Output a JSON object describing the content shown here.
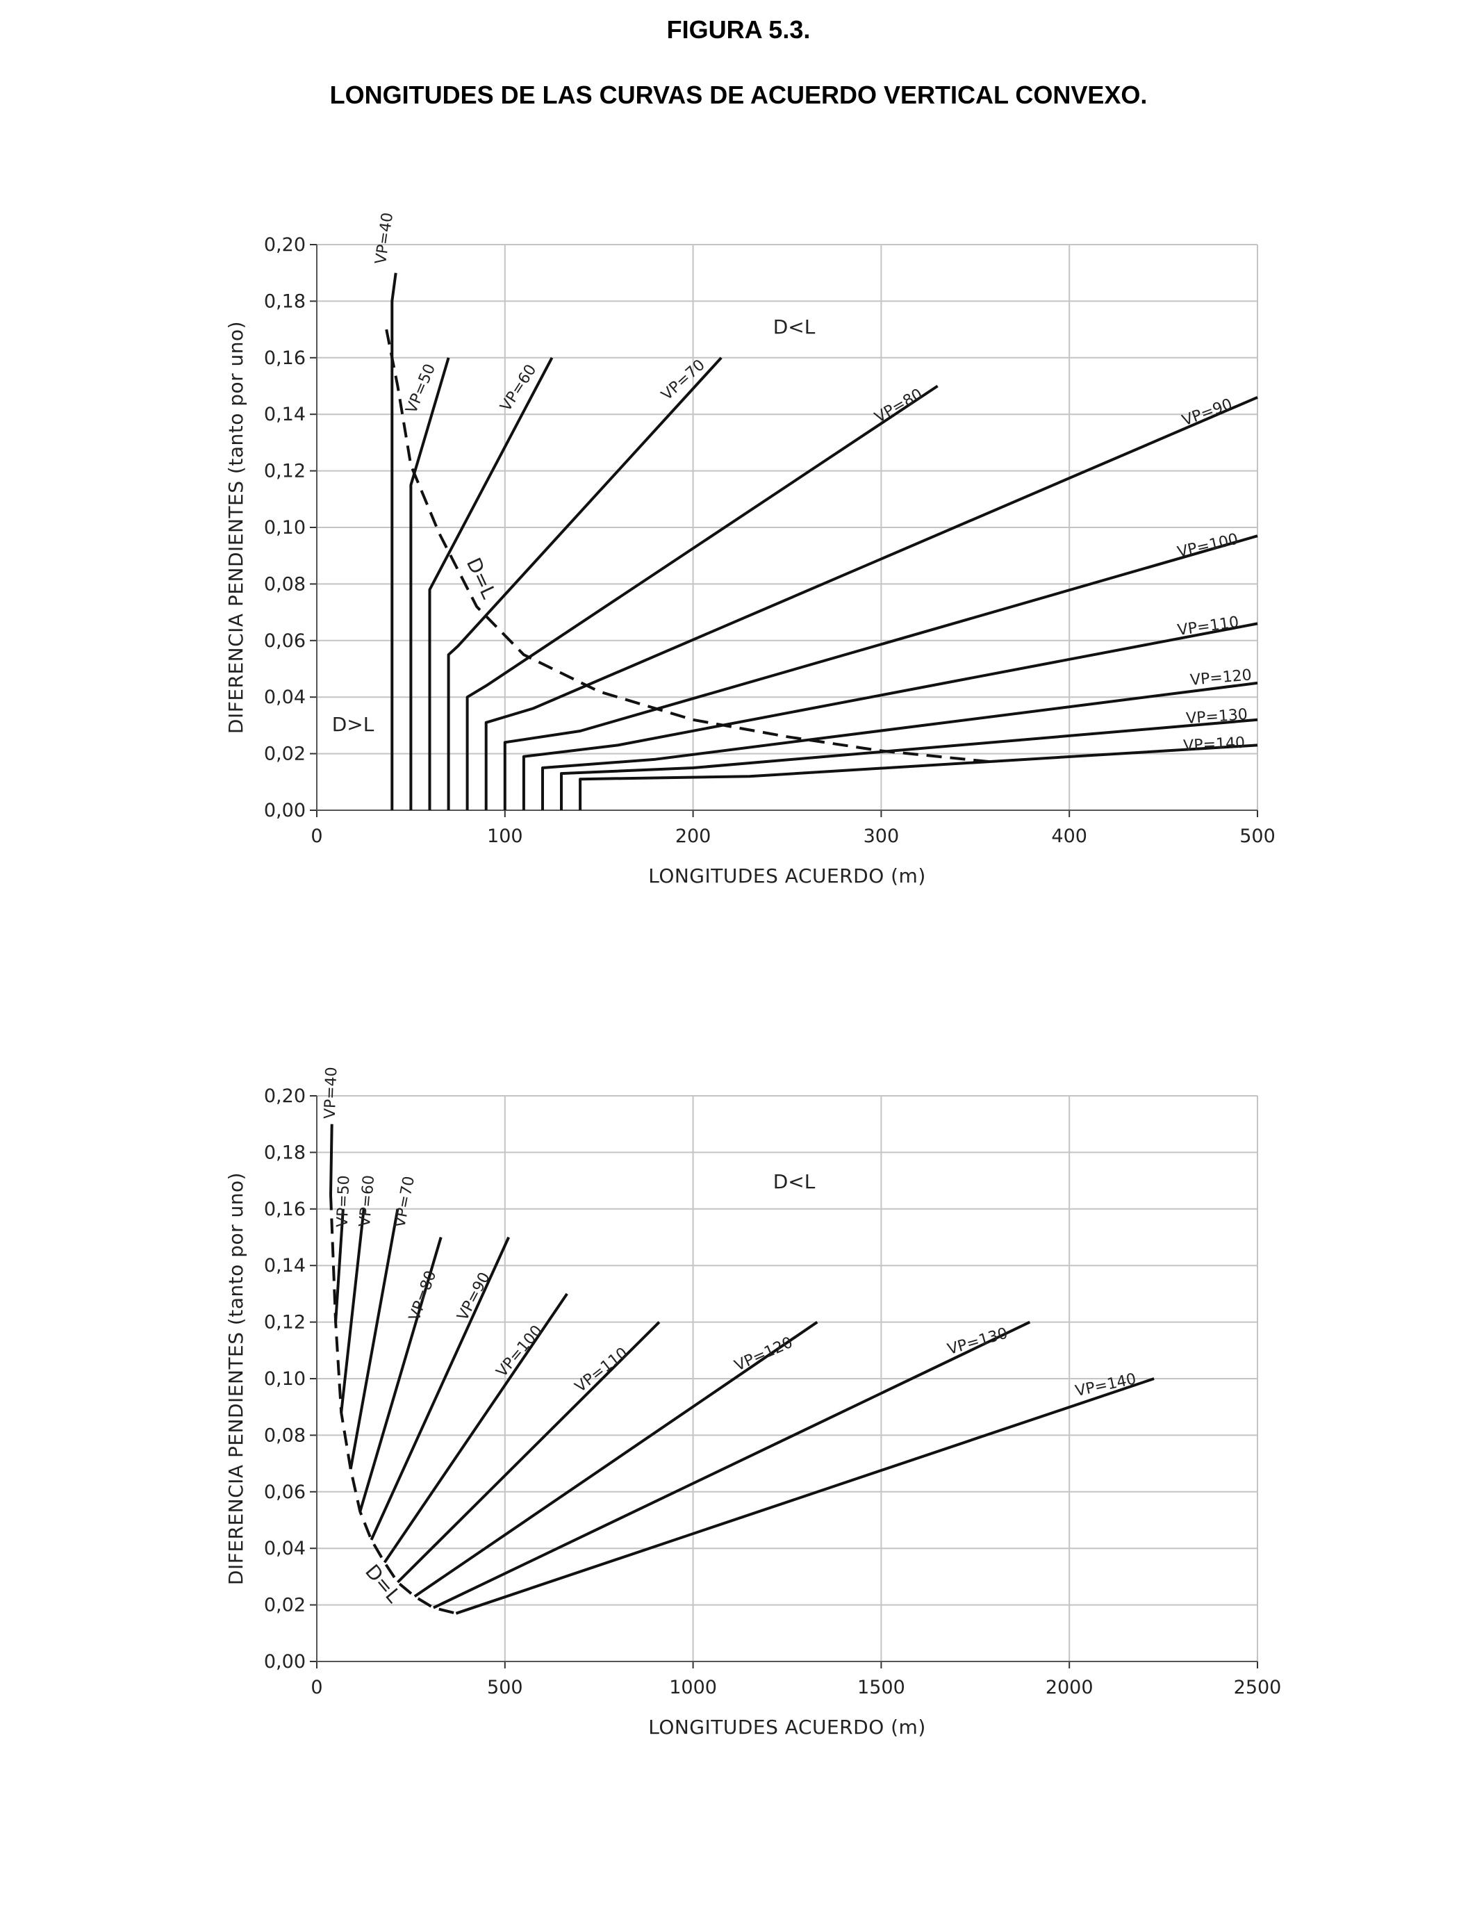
{
  "header": {
    "figure": "FIGURA 5.3.",
    "title": "LONGITUDES DE LAS CURVAS DE ACUERDO VERTICAL CONVEXO."
  },
  "chart_data": [
    {
      "type": "line",
      "xlabel": "LONGITUDES ACUERDO (m)",
      "ylabel": "DIFERENCIA PENDIENTES (tanto por uno)",
      "xlim": [
        0,
        500
      ],
      "ylim": [
        0,
        0.2
      ],
      "x_ticks": [
        "0",
        "100",
        "200",
        "300",
        "400",
        "500"
      ],
      "y_ticks": [
        "0,00",
        "0,02",
        "0,04",
        "0,06",
        "0,08",
        "0,10",
        "0,12",
        "0,14",
        "0,16",
        "0,18",
        "0,20"
      ],
      "grid": true,
      "annotations": [
        "D<L",
        "D>L",
        "D=L"
      ],
      "series": [
        {
          "name": "VP=40",
          "label": "VP=40",
          "points": [
            [
              40,
              0.0
            ],
            [
              40,
              0.13
            ],
            [
              40,
              0.18
            ],
            [
              41,
              0.185
            ],
            [
              42,
              0.19
            ]
          ]
        },
        {
          "name": "VP=50",
          "label": "VP=50",
          "points": [
            [
              50,
              0.0
            ],
            [
              50,
              0.115
            ],
            [
              70,
              0.16
            ]
          ]
        },
        {
          "name": "VP=60",
          "label": "VP=60",
          "points": [
            [
              60,
              0.0
            ],
            [
              60,
              0.078
            ],
            [
              125,
              0.16
            ]
          ]
        },
        {
          "name": "VP=70",
          "label": "VP=70",
          "points": [
            [
              70,
              0.0
            ],
            [
              70,
              0.055
            ],
            [
              75,
              0.058
            ],
            [
              215,
              0.16
            ]
          ]
        },
        {
          "name": "VP=80",
          "label": "VP=80",
          "points": [
            [
              80,
              0.0
            ],
            [
              80,
              0.04
            ],
            [
              90,
              0.044
            ],
            [
              330,
              0.15
            ]
          ]
        },
        {
          "name": "VP=90",
          "label": "VP=90",
          "points": [
            [
              90,
              0.0
            ],
            [
              90,
              0.031
            ],
            [
              115,
              0.036
            ],
            [
              500,
              0.146
            ]
          ]
        },
        {
          "name": "VP=100",
          "label": "VP=100",
          "points": [
            [
              100,
              0.0
            ],
            [
              100,
              0.024
            ],
            [
              140,
              0.028
            ],
            [
              500,
              0.097
            ]
          ]
        },
        {
          "name": "VP=110",
          "label": "VP=110",
          "points": [
            [
              110,
              0.0
            ],
            [
              110,
              0.019
            ],
            [
              160,
              0.023
            ],
            [
              500,
              0.066
            ]
          ]
        },
        {
          "name": "VP=120",
          "label": "VP=120",
          "points": [
            [
              120,
              0.0
            ],
            [
              120,
              0.015
            ],
            [
              180,
              0.018
            ],
            [
              500,
              0.045
            ]
          ]
        },
        {
          "name": "VP=130",
          "label": "VP=130",
          "points": [
            [
              130,
              0.0
            ],
            [
              130,
              0.013
            ],
            [
              200,
              0.015
            ],
            [
              500,
              0.032
            ]
          ]
        },
        {
          "name": "VP=140",
          "label": "VP=140",
          "points": [
            [
              140,
              0.0
            ],
            [
              140,
              0.011
            ],
            [
              230,
              0.012
            ],
            [
              500,
              0.023
            ]
          ]
        },
        {
          "name": "D=L",
          "dashed": true,
          "points": [
            [
              37,
              0.17
            ],
            [
              43,
              0.15
            ],
            [
              50,
              0.122
            ],
            [
              65,
              0.098
            ],
            [
              85,
              0.072
            ],
            [
              110,
              0.055
            ],
            [
              150,
              0.042
            ],
            [
              200,
              0.032
            ],
            [
              250,
              0.026
            ],
            [
              300,
              0.021
            ],
            [
              360,
              0.017
            ]
          ]
        }
      ]
    },
    {
      "type": "line",
      "xlabel": "LONGITUDES ACUERDO (m)",
      "ylabel": "DIFERENCIA PENDIENTES (tanto por uno)",
      "xlim": [
        0,
        2500
      ],
      "ylim": [
        0,
        0.2
      ],
      "x_ticks": [
        "0",
        "500",
        "1000",
        "1500",
        "2000",
        "2500"
      ],
      "y_ticks": [
        "0,00",
        "0,02",
        "0,04",
        "0,06",
        "0,08",
        "0,10",
        "0,12",
        "0,14",
        "0,16",
        "0,18",
        "0,20"
      ],
      "grid": true,
      "annotations": [
        "D<L",
        "D=L"
      ],
      "series": [
        {
          "name": "VP=40",
          "label": "VP=40",
          "points": [
            [
              37,
              0.165
            ],
            [
              40,
              0.19
            ]
          ]
        },
        {
          "name": "VP=50",
          "label": "VP=50",
          "points": [
            [
              50,
              0.12
            ],
            [
              70,
              0.16
            ]
          ]
        },
        {
          "name": "VP=60",
          "label": "VP=60",
          "points": [
            [
              65,
              0.088
            ],
            [
              125,
              0.16
            ]
          ]
        },
        {
          "name": "VP=70",
          "label": "VP=70",
          "points": [
            [
              90,
              0.068
            ],
            [
              215,
              0.16
            ]
          ]
        },
        {
          "name": "VP=80",
          "label": "VP=80",
          "points": [
            [
              115,
              0.053
            ],
            [
              330,
              0.15
            ]
          ]
        },
        {
          "name": "VP=90",
          "label": "VP=90",
          "points": [
            [
              145,
              0.043
            ],
            [
              510,
              0.15
            ]
          ]
        },
        {
          "name": "VP=100",
          "label": "VP=100",
          "points": [
            [
              180,
              0.035
            ],
            [
              665,
              0.13
            ]
          ]
        },
        {
          "name": "VP=110",
          "label": "VP=110",
          "points": [
            [
              215,
              0.028
            ],
            [
              910,
              0.12
            ]
          ]
        },
        {
          "name": "VP=120",
          "label": "VP=120",
          "points": [
            [
              260,
              0.023
            ],
            [
              1330,
              0.12
            ]
          ]
        },
        {
          "name": "VP=130",
          "label": "VP=130",
          "points": [
            [
              310,
              0.019
            ],
            [
              1895,
              0.12
            ]
          ]
        },
        {
          "name": "VP=140",
          "label": "VP=140",
          "points": [
            [
              370,
              0.017
            ],
            [
              2225,
              0.1
            ]
          ]
        },
        {
          "name": "D=L",
          "dashed": true,
          "points": [
            [
              37,
              0.165
            ],
            [
              50,
              0.12
            ],
            [
              65,
              0.088
            ],
            [
              90,
              0.068
            ],
            [
              115,
              0.053
            ],
            [
              145,
              0.043
            ],
            [
              180,
              0.035
            ],
            [
              215,
              0.028
            ],
            [
              260,
              0.023
            ],
            [
              310,
              0.019
            ],
            [
              370,
              0.017
            ]
          ]
        }
      ]
    }
  ]
}
